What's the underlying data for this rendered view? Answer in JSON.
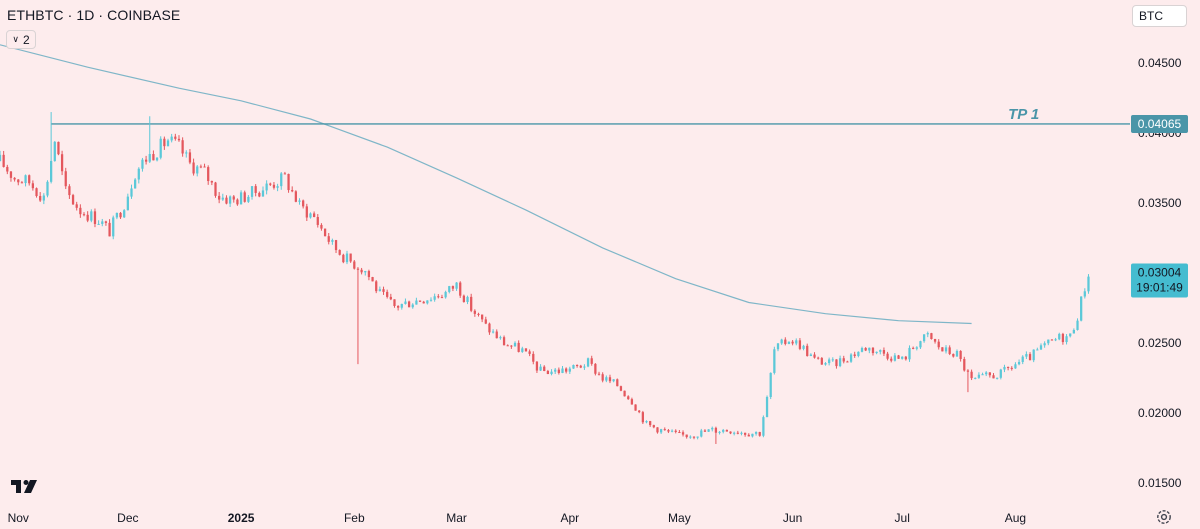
{
  "header": {
    "symbol_title": "ETHBTC · 1D · COINBASE",
    "collapse_count": "2",
    "currency": "BTC"
  },
  "icons": {
    "logo": "tradingview-logo-icon",
    "settings": "settings-gear-icon",
    "collapse": "chevron-down-icon"
  },
  "colors": {
    "background": "#fdeced",
    "up_candle": "#5bc8d8",
    "down_candle": "#e4575d",
    "moving_average": "#7fb6c8",
    "tp_line": "#4a95a8",
    "price_tag": "#45bcd0"
  },
  "chart_data": {
    "type": "candlestick",
    "x_axis": {
      "ticks": [
        "Nov",
        "Dec",
        "2025",
        "Feb",
        "Mar",
        "Apr",
        "May",
        "Jun",
        "Jul",
        "Aug"
      ],
      "range": [
        "2024-10-27",
        "2025-08-31"
      ]
    },
    "y_axis": {
      "ticks": [
        "0.04500",
        "0.04000",
        "0.03500",
        "0.02500",
        "0.02000",
        "0.01500"
      ],
      "range": [
        0.0138,
        0.0495
      ],
      "grid": false,
      "position": "right"
    },
    "horizontal_line": {
      "label": "TP 1",
      "value": 0.04065,
      "tag": "0.04065"
    },
    "current_price": {
      "value": 0.03004,
      "tag": "0.03004",
      "countdown": "19:01:49"
    },
    "moving_average": {
      "points": [
        [
          "2024-10-27",
          0.0463
        ],
        [
          "2024-11-20",
          0.0447
        ],
        [
          "2024-12-15",
          0.0432
        ],
        [
          "2025-01-01",
          0.0423
        ],
        [
          "2025-01-20",
          0.041
        ],
        [
          "2025-02-10",
          0.039
        ],
        [
          "2025-03-01",
          0.0368
        ],
        [
          "2025-03-20",
          0.0345
        ],
        [
          "2025-04-10",
          0.0318
        ],
        [
          "2025-04-30",
          0.0296
        ],
        [
          "2025-05-20",
          0.0279
        ],
        [
          "2025-06-10",
          0.0271
        ],
        [
          "2025-06-30",
          0.0266
        ],
        [
          "2025-07-20",
          0.0264
        ]
      ]
    },
    "price_path": [
      [
        "2024-10-27",
        0.038
      ],
      [
        "2024-10-31",
        0.0368
      ],
      [
        "2024-11-04",
        0.0365
      ],
      [
        "2024-11-08",
        0.0354
      ],
      [
        "2024-11-11",
        0.0395
      ],
      [
        "2024-11-14",
        0.0358
      ],
      [
        "2024-11-18",
        0.0345
      ],
      [
        "2024-11-23",
        0.0338
      ],
      [
        "2024-11-26",
        0.033
      ],
      [
        "2024-11-30",
        0.035
      ],
      [
        "2024-12-03",
        0.0372
      ],
      [
        "2024-12-06",
        0.0382
      ],
      [
        "2024-12-09",
        0.0388
      ],
      [
        "2024-12-12",
        0.0395
      ],
      [
        "2024-12-15",
        0.039
      ],
      [
        "2024-12-18",
        0.0378
      ],
      [
        "2024-12-22",
        0.0372
      ],
      [
        "2024-12-26",
        0.0355
      ],
      [
        "2024-12-30",
        0.0352
      ],
      [
        "2025-01-04",
        0.0357
      ],
      [
        "2025-01-08",
        0.0362
      ],
      [
        "2025-01-13",
        0.0368
      ],
      [
        "2025-01-17",
        0.0348
      ],
      [
        "2025-01-21",
        0.034
      ],
      [
        "2025-01-26",
        0.032
      ],
      [
        "2025-01-30",
        0.031
      ],
      [
        "2025-02-04",
        0.0302
      ],
      [
        "2025-02-08",
        0.0285
      ],
      [
        "2025-02-12",
        0.0276
      ],
      [
        "2025-02-17",
        0.028
      ],
      [
        "2025-02-22",
        0.0283
      ],
      [
        "2025-02-26",
        0.0286
      ],
      [
        "2025-03-01",
        0.0292
      ],
      [
        "2025-03-05",
        0.0275
      ],
      [
        "2025-03-09",
        0.0262
      ],
      [
        "2025-03-14",
        0.025
      ],
      [
        "2025-03-19",
        0.0245
      ],
      [
        "2025-03-24",
        0.023
      ],
      [
        "2025-03-28",
        0.023
      ],
      [
        "2025-04-02",
        0.0232
      ],
      [
        "2025-04-06",
        0.0236
      ],
      [
        "2025-04-10",
        0.0225
      ],
      [
        "2025-04-14",
        0.022
      ],
      [
        "2025-04-18",
        0.0209
      ],
      [
        "2025-04-22",
        0.0192
      ],
      [
        "2025-04-27",
        0.0187
      ],
      [
        "2025-05-01",
        0.0184
      ],
      [
        "2025-05-05",
        0.0185
      ],
      [
        "2025-05-10",
        0.0188
      ],
      [
        "2025-05-15",
        0.0188
      ],
      [
        "2025-05-20",
        0.0186
      ],
      [
        "2025-05-23",
        0.0186
      ],
      [
        "2025-05-25",
        0.021
      ],
      [
        "2025-05-27",
        0.0245
      ],
      [
        "2025-05-31",
        0.0253
      ],
      [
        "2025-06-03",
        0.0249
      ],
      [
        "2025-06-07",
        0.0238
      ],
      [
        "2025-06-12",
        0.0235
      ],
      [
        "2025-06-16",
        0.024
      ],
      [
        "2025-06-21",
        0.0247
      ],
      [
        "2025-06-26",
        0.0243
      ],
      [
        "2025-07-01",
        0.0238
      ],
      [
        "2025-07-05",
        0.025
      ],
      [
        "2025-07-08",
        0.0255
      ],
      [
        "2025-07-12",
        0.0245
      ],
      [
        "2025-07-16",
        0.0242
      ],
      [
        "2025-07-20",
        0.0223
      ],
      [
        "2025-07-24",
        0.0226
      ],
      [
        "2025-07-28",
        0.0228
      ],
      [
        "2025-08-01",
        0.0235
      ],
      [
        "2025-08-05",
        0.024
      ],
      [
        "2025-08-09",
        0.0248
      ],
      [
        "2025-08-13",
        0.0254
      ],
      [
        "2025-08-16",
        0.0255
      ],
      [
        "2025-08-18",
        0.027
      ],
      [
        "2025-08-20",
        0.029
      ],
      [
        "2025-08-21",
        0.03
      ]
    ],
    "notable_wicks": [
      [
        "2024-11-10",
        0.0415
      ],
      [
        "2024-12-07",
        0.0412
      ],
      [
        "2025-02-02",
        0.0235
      ],
      [
        "2025-05-11",
        0.0178
      ],
      [
        "2025-07-19",
        0.0215
      ]
    ]
  }
}
